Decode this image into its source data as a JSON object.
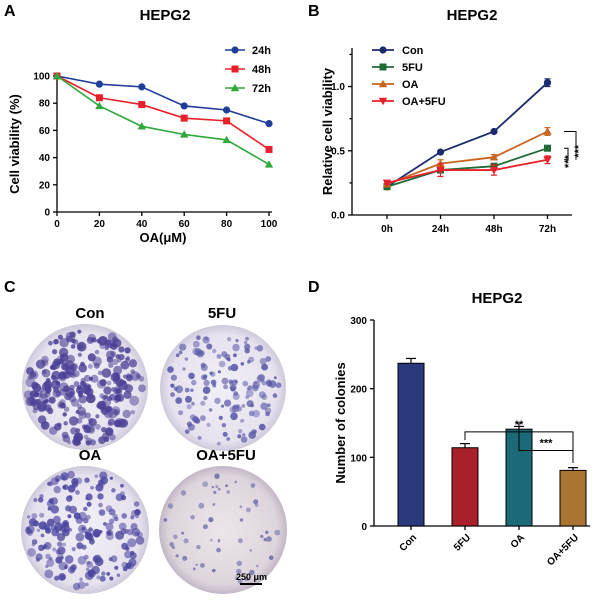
{
  "panels": {
    "A": "A",
    "B": "B",
    "C": "C",
    "D": "D"
  },
  "colors": {
    "24h": "#1f3d99",
    "48h": "#e8202a",
    "72h": "#2fa83c",
    "Con": "#1c2a6e",
    "5FU": "#1e6b34",
    "OA": "#c8641e",
    "OA5FU": "#e8202a",
    "bar_Con": "#2a3a7c",
    "bar_5FU": "#a8202a",
    "bar_OA": "#1c6a78",
    "bar_OA5FU": "#a87532"
  },
  "chart_data": [
    {
      "id": "A",
      "type": "line",
      "title": "HEPG2",
      "xlabel": "OA(μM)",
      "ylabel": "Cell viability (%)",
      "x": [
        0,
        20,
        40,
        60,
        80,
        100
      ],
      "xlim": [
        0,
        100
      ],
      "ylim": [
        0,
        100
      ],
      "xticks": [
        "0",
        "20",
        "40",
        "60",
        "80",
        "100"
      ],
      "yticks": [
        "0",
        "20",
        "40",
        "60",
        "80",
        "100"
      ],
      "series": [
        {
          "name": "24h",
          "values": [
            100,
            94,
            92,
            78,
            75,
            65
          ]
        },
        {
          "name": "48h",
          "values": [
            100,
            84,
            79,
            69,
            67,
            46
          ]
        },
        {
          "name": "72h",
          "values": [
            100,
            78,
            63,
            57,
            53,
            35
          ]
        }
      ]
    },
    {
      "id": "B",
      "type": "line",
      "title": "HEPG2",
      "xlabel": "",
      "ylabel": "Relative cell viability",
      "categories": [
        "0h",
        "24h",
        "48h",
        "72h"
      ],
      "ylim": [
        0,
        1.3
      ],
      "yticks": [
        "0.0",
        "0.5",
        "1.0"
      ],
      "series": [
        {
          "name": "Con",
          "values": [
            0.22,
            0.49,
            0.65,
            1.03
          ],
          "errors": [
            0.01,
            0.01,
            0.01,
            0.03
          ]
        },
        {
          "name": "5FU",
          "values": [
            0.22,
            0.35,
            0.38,
            0.52
          ],
          "errors": [
            0.01,
            0.02,
            0.02,
            0.01
          ]
        },
        {
          "name": "OA",
          "values": [
            0.24,
            0.4,
            0.45,
            0.65
          ],
          "errors": [
            0.01,
            0.03,
            0.02,
            0.03
          ]
        },
        {
          "name": "OA+5FU",
          "values": [
            0.25,
            0.35,
            0.35,
            0.43
          ],
          "errors": [
            0.01,
            0.05,
            0.04,
            0.03
          ]
        }
      ],
      "annotations": [
        "***",
        "***"
      ]
    },
    {
      "id": "D",
      "type": "bar",
      "title": "HEPG2",
      "xlabel": "",
      "ylabel": "Number of colonies",
      "categories": [
        "Con",
        "5FU",
        "OA",
        "OA+5FU"
      ],
      "values": [
        237,
        114,
        141,
        81
      ],
      "errors": [
        7,
        6,
        4,
        4
      ],
      "ylim": [
        0,
        300
      ],
      "yticks": [
        "0",
        "100",
        "200",
        "300"
      ],
      "annotations": [
        "**",
        "***"
      ]
    }
  ],
  "panelC": {
    "labels": [
      "Con",
      "5FU",
      "OA",
      "OA+5FU"
    ],
    "scale_bar": "250 μm"
  }
}
